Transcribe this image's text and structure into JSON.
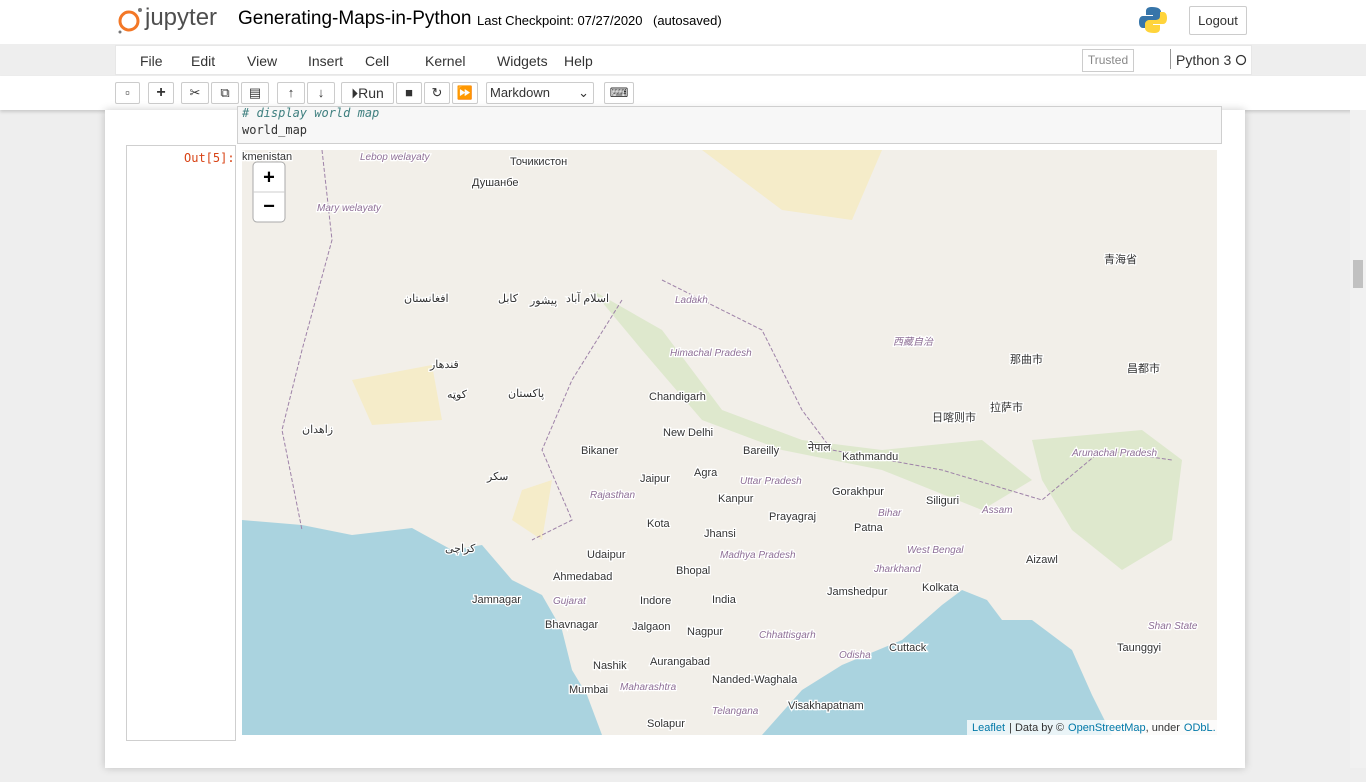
{
  "header": {
    "logo": "jupyter",
    "title": "Generating-Maps-in-Python",
    "checkpoint": "Last Checkpoint: 07/27/2020",
    "autosave": "(autosaved)",
    "logout": "Logout"
  },
  "menu": [
    "File",
    "Edit",
    "View",
    "Insert",
    "Cell",
    "Kernel",
    "Widgets",
    "Help"
  ],
  "trusted": "Trusted",
  "kernel": "Python 3",
  "toolbar": {
    "run": "Run",
    "cell_type": "Markdown"
  },
  "cell": {
    "code": [
      "# display world map",
      "world_map"
    ],
    "out_prompt": "Out[5]:"
  },
  "map": {
    "zoom_in": "+",
    "zoom_out": "−",
    "labels": [
      "kmenistan",
      "Lebop welayaty",
      "Точикистон",
      "Душанбе",
      "Mary welayaty",
      "Ladakh",
      "افغانستان",
      "کابل",
      "اسلام آباد",
      "پیشور",
      "Himachal Pradesh",
      "西藏自治",
      "那曲市",
      "昌都市",
      "日喀则市",
      "拉萨市",
      "青海省",
      "Chandigarh",
      "پاکستان",
      "قندهار",
      "کوټه",
      "زاهدان",
      "New Delhi",
      "Bareilly",
      "नेपाल",
      "Kathmandu",
      "Bikaner",
      "Jaipur",
      "Agra",
      "Uttar Pradesh",
      "Arunachal Pradesh",
      "Gorakhpur",
      "Siliguri",
      "Kanpur",
      "Rajasthan",
      "Bihar",
      "Prayagraj",
      "Patna",
      "Assam",
      "Kota",
      "Jhansi",
      "Udaipur",
      "Madhya Pradesh",
      "West Bengal",
      "Aizawl",
      "Ahmedabad",
      "Bhopal",
      "Jharkhand",
      "Jamshedpur",
      "Kolkata",
      "Jamnagar",
      "Gujarat",
      "Indore",
      "India",
      "Bhavnagar",
      "Jalgaon",
      "Nagpur",
      "Chhattisgarh",
      "Cuttack",
      "Nashik",
      "Aurangabad",
      "Odisha",
      "Nanded-Waghala",
      "Mumbai",
      "Maharashtra",
      "Telangana",
      "Visakhapatnam",
      "Solapur",
      "Taunggyi",
      "Shan State",
      "کراچی",
      "سکر"
    ],
    "attribution": {
      "leaflet": "Leaflet",
      "data_by": "| Data by ©",
      "osm": "OpenStreetMap",
      "under": ", under",
      "odbl": "ODbL."
    }
  }
}
